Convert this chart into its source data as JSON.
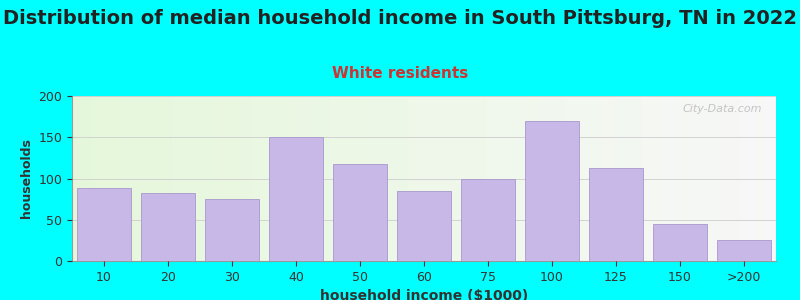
{
  "title": "Distribution of median household income in South Pittsburg, TN in 2022",
  "subtitle": "White residents",
  "xlabel": "household income ($1000)",
  "ylabel": "households",
  "categories": [
    "10",
    "20",
    "30",
    "40",
    "50",
    "60",
    "75",
    "100",
    "125",
    "150",
    ">200"
  ],
  "values": [
    88,
    82,
    75,
    150,
    117,
    85,
    100,
    170,
    113,
    45,
    25
  ],
  "bar_color": "#C8B8E8",
  "bar_edge_color": "#A898CC",
  "background_outer": "#00FFFF",
  "title_fontsize": 14,
  "subtitle_fontsize": 11,
  "subtitle_color": "#CC3333",
  "ylabel_fontsize": 9,
  "xlabel_fontsize": 10,
  "tick_fontsize": 9,
  "ylim": [
    0,
    200
  ],
  "yticks": [
    0,
    50,
    100,
    150,
    200
  ],
  "watermark": "City-Data.com",
  "title_color": "#222222"
}
